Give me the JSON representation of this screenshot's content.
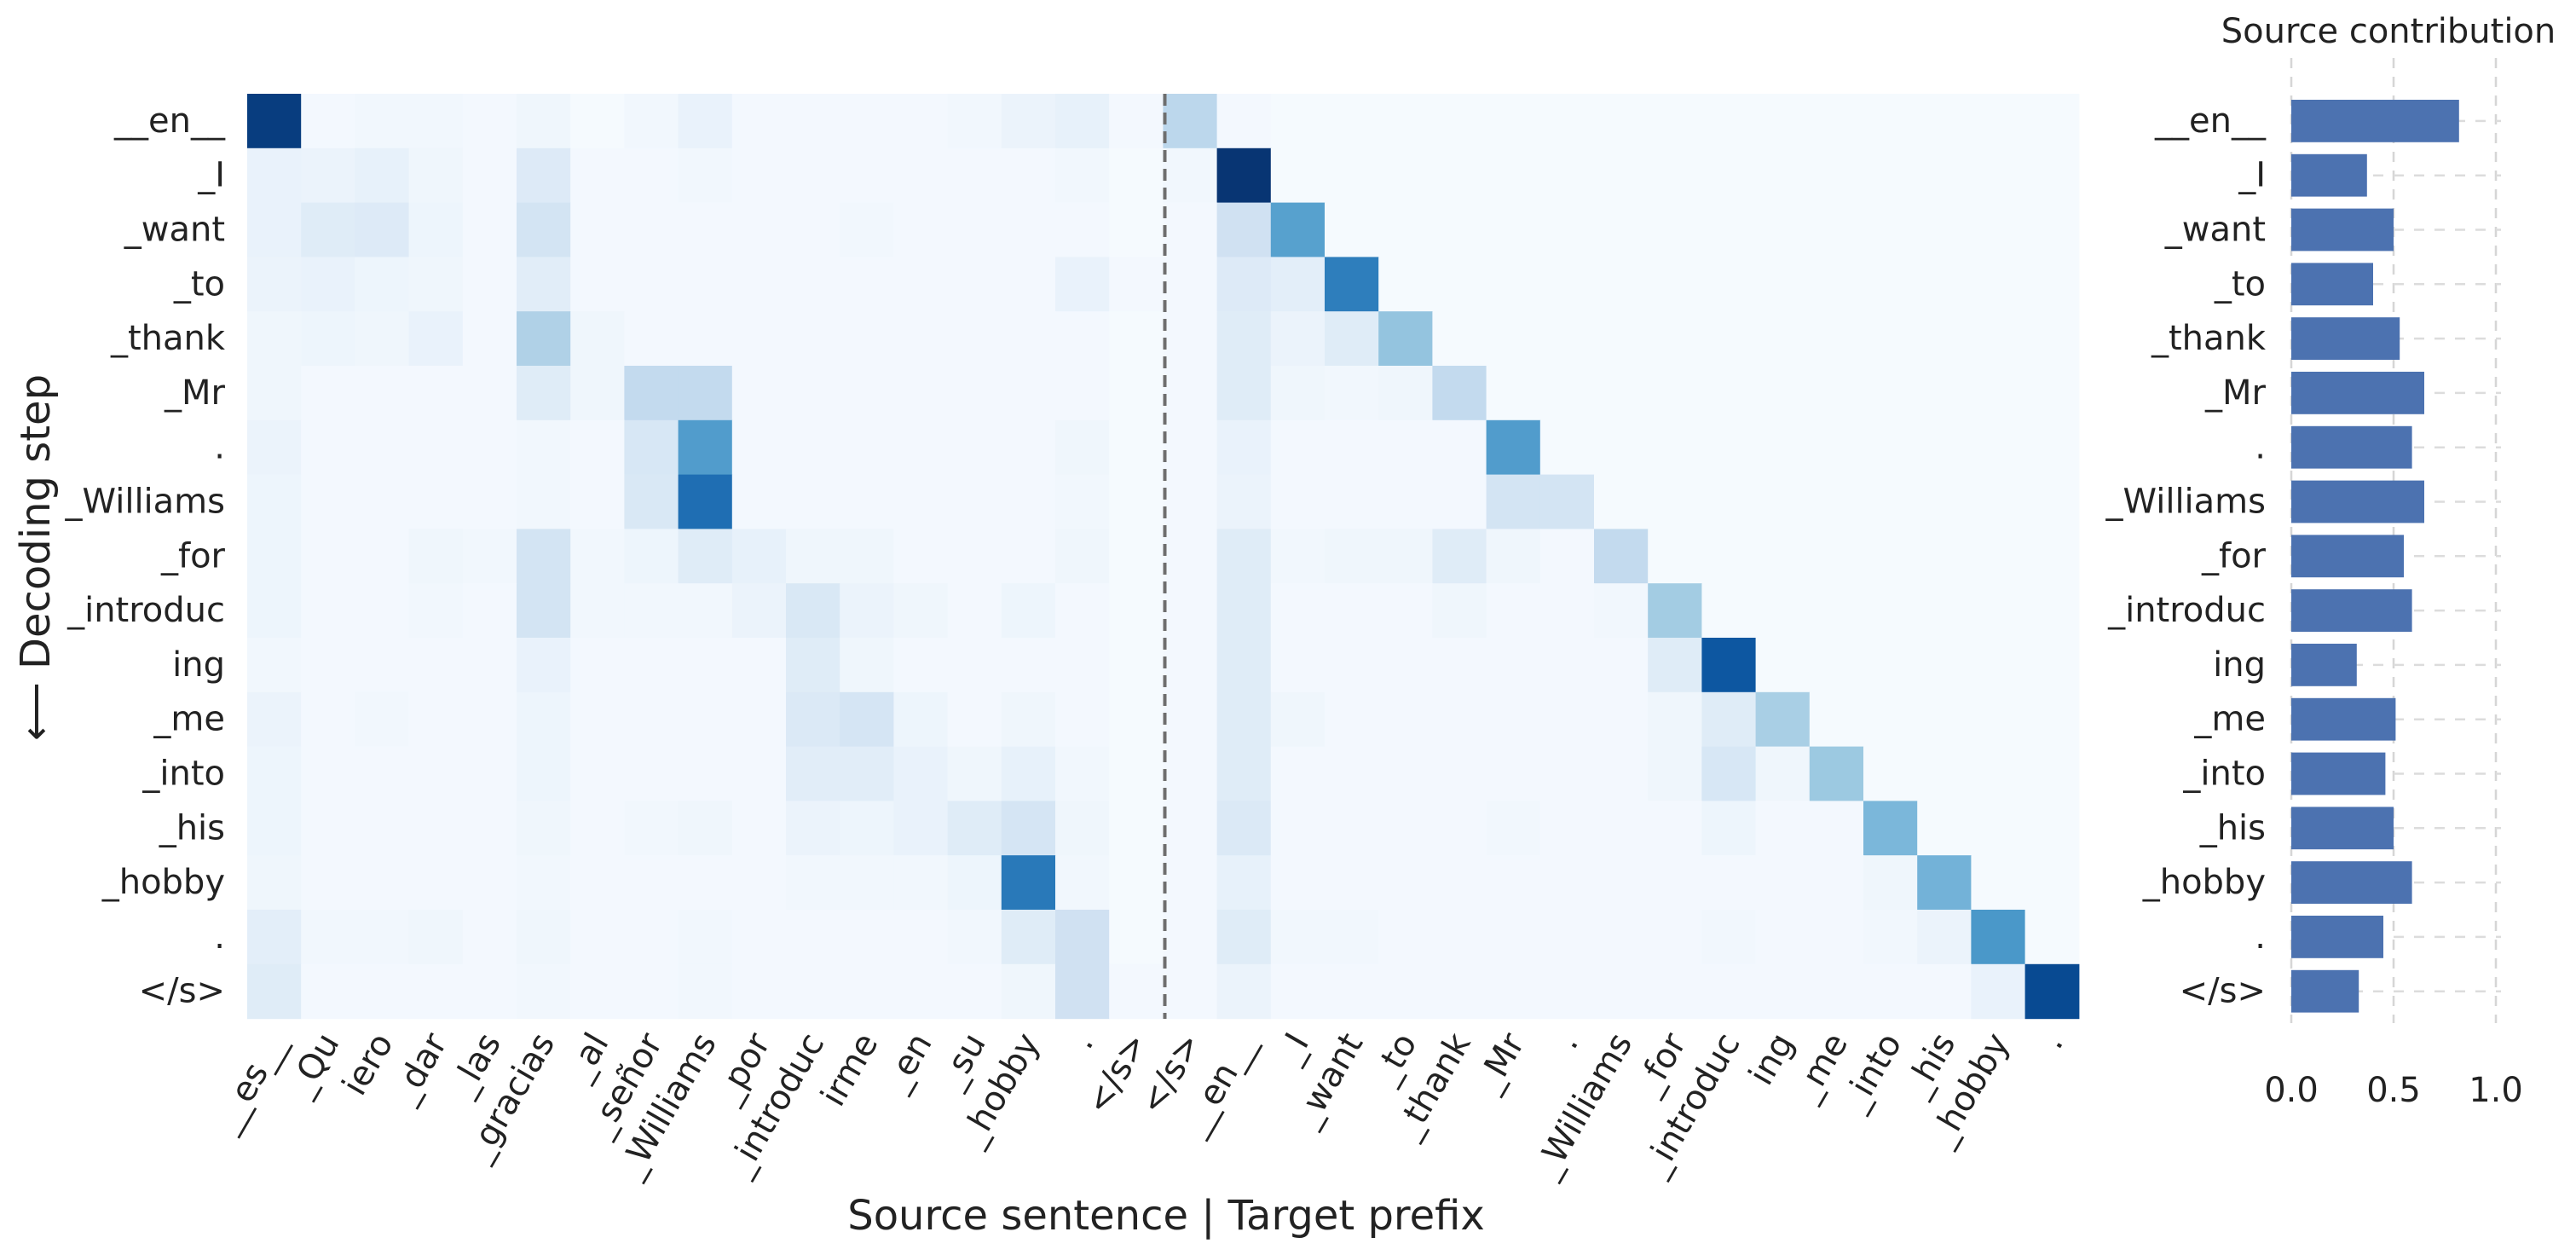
{
  "chart_data": [
    {
      "type": "heatmap",
      "colormap": "Blues",
      "xlabel": "Source sentence | Target prefix",
      "ylabel": "⟵ Decoding step",
      "rows": [
        "__en__",
        "_I",
        "_want",
        "_to",
        "_thank",
        "_Mr",
        ".",
        "_Williams",
        "_for",
        "_introduc",
        "ing",
        "_me",
        "_into",
        "_his",
        "_hobby",
        ".",
        "</s>"
      ],
      "source_tokens": [
        "__es__",
        "_Qu",
        "iero",
        "_dar",
        "_las",
        "_gracias",
        "_al",
        "_señor",
        "_Williams",
        "_por",
        "_introduc",
        "irme",
        "_en",
        "_su",
        "_hobby",
        ".",
        "</s>"
      ],
      "target_tokens": [
        "</s>",
        "__en__",
        "_I",
        "_want",
        "_to",
        "_thank",
        "_Mr",
        ".",
        "_Williams",
        "_for",
        "_introduc",
        "ing",
        "_me",
        "_into",
        "_his",
        "_hobby",
        "."
      ],
      "source_values": [
        [
          0.95,
          0.02,
          0.03,
          0.03,
          0.02,
          0.04,
          0.01,
          0.03,
          0.07,
          0.02,
          0.02,
          0.02,
          0.02,
          0.03,
          0.06,
          0.08,
          0.02
        ],
        [
          0.07,
          0.06,
          0.08,
          0.04,
          0.02,
          0.13,
          0.02,
          0.02,
          0.03,
          0.02,
          0.02,
          0.02,
          0.02,
          0.02,
          0.02,
          0.03,
          0.01
        ],
        [
          0.07,
          0.12,
          0.13,
          0.05,
          0.02,
          0.18,
          0.02,
          0.02,
          0.02,
          0.02,
          0.02,
          0.03,
          0.02,
          0.02,
          0.02,
          0.02,
          0.01
        ],
        [
          0.06,
          0.07,
          0.05,
          0.04,
          0.02,
          0.11,
          0.02,
          0.02,
          0.02,
          0.02,
          0.02,
          0.02,
          0.02,
          0.02,
          0.02,
          0.07,
          0.02
        ],
        [
          0.04,
          0.05,
          0.04,
          0.07,
          0.02,
          0.32,
          0.04,
          0.02,
          0.02,
          0.02,
          0.02,
          0.02,
          0.02,
          0.02,
          0.02,
          0.02,
          0.01
        ],
        [
          0.04,
          0.02,
          0.02,
          0.02,
          0.02,
          0.12,
          0.04,
          0.26,
          0.26,
          0.02,
          0.02,
          0.02,
          0.02,
          0.02,
          0.02,
          0.02,
          0.01
        ],
        [
          0.06,
          0.02,
          0.02,
          0.02,
          0.02,
          0.03,
          0.02,
          0.16,
          0.58,
          0.02,
          0.02,
          0.02,
          0.02,
          0.02,
          0.02,
          0.04,
          0.01
        ],
        [
          0.05,
          0.02,
          0.02,
          0.02,
          0.02,
          0.03,
          0.02,
          0.15,
          0.76,
          0.02,
          0.02,
          0.02,
          0.02,
          0.02,
          0.02,
          0.03,
          0.01
        ],
        [
          0.05,
          0.02,
          0.02,
          0.04,
          0.03,
          0.18,
          0.03,
          0.05,
          0.12,
          0.08,
          0.04,
          0.04,
          0.02,
          0.02,
          0.02,
          0.04,
          0.01
        ],
        [
          0.05,
          0.02,
          0.02,
          0.03,
          0.02,
          0.18,
          0.03,
          0.03,
          0.03,
          0.06,
          0.15,
          0.06,
          0.04,
          0.02,
          0.05,
          0.02,
          0.01
        ],
        [
          0.03,
          0.02,
          0.02,
          0.02,
          0.02,
          0.07,
          0.02,
          0.02,
          0.02,
          0.02,
          0.12,
          0.04,
          0.02,
          0.02,
          0.02,
          0.02,
          0.01
        ],
        [
          0.06,
          0.02,
          0.03,
          0.02,
          0.02,
          0.05,
          0.02,
          0.02,
          0.02,
          0.02,
          0.14,
          0.17,
          0.05,
          0.02,
          0.04,
          0.02,
          0.01
        ],
        [
          0.05,
          0.02,
          0.02,
          0.02,
          0.02,
          0.05,
          0.02,
          0.02,
          0.02,
          0.02,
          0.11,
          0.11,
          0.07,
          0.04,
          0.08,
          0.03,
          0.01
        ],
        [
          0.05,
          0.02,
          0.02,
          0.02,
          0.02,
          0.04,
          0.02,
          0.03,
          0.04,
          0.02,
          0.06,
          0.05,
          0.07,
          0.12,
          0.17,
          0.04,
          0.01
        ],
        [
          0.04,
          0.02,
          0.02,
          0.02,
          0.02,
          0.03,
          0.02,
          0.02,
          0.02,
          0.02,
          0.03,
          0.03,
          0.03,
          0.05,
          0.72,
          0.03,
          0.01
        ],
        [
          0.1,
          0.03,
          0.03,
          0.04,
          0.02,
          0.04,
          0.02,
          0.02,
          0.03,
          0.02,
          0.02,
          0.02,
          0.02,
          0.03,
          0.12,
          0.2,
          0.01
        ],
        [
          0.12,
          0.02,
          0.02,
          0.02,
          0.02,
          0.03,
          0.02,
          0.02,
          0.03,
          0.02,
          0.02,
          0.02,
          0.02,
          0.02,
          0.04,
          0.2,
          0.02
        ]
      ],
      "target_values": [
        [
          0.28,
          0.02,
          0.01,
          0.01,
          0.01,
          0.01,
          0.01,
          0.01,
          0.01,
          0.01,
          0.01,
          0.01,
          0.01,
          0.01,
          0.01,
          0.01,
          0.01
        ],
        [
          0.03,
          0.98,
          0.01,
          0.01,
          0.01,
          0.01,
          0.01,
          0.01,
          0.01,
          0.01,
          0.01,
          0.01,
          0.01,
          0.01,
          0.01,
          0.01,
          0.01
        ],
        [
          0.02,
          0.2,
          0.56,
          0.01,
          0.01,
          0.01,
          0.01,
          0.01,
          0.01,
          0.01,
          0.01,
          0.01,
          0.01,
          0.01,
          0.01,
          0.01,
          0.01
        ],
        [
          0.02,
          0.13,
          0.1,
          0.7,
          0.01,
          0.01,
          0.01,
          0.01,
          0.01,
          0.01,
          0.01,
          0.01,
          0.01,
          0.01,
          0.01,
          0.01,
          0.01
        ],
        [
          0.02,
          0.12,
          0.06,
          0.12,
          0.4,
          0.01,
          0.01,
          0.01,
          0.01,
          0.01,
          0.01,
          0.01,
          0.01,
          0.01,
          0.01,
          0.01,
          0.01
        ],
        [
          0.02,
          0.12,
          0.04,
          0.03,
          0.04,
          0.26,
          0.01,
          0.01,
          0.01,
          0.01,
          0.01,
          0.01,
          0.01,
          0.01,
          0.01,
          0.01,
          0.01
        ],
        [
          0.02,
          0.07,
          0.02,
          0.02,
          0.02,
          0.02,
          0.58,
          0.01,
          0.01,
          0.01,
          0.01,
          0.01,
          0.01,
          0.01,
          0.01,
          0.01,
          0.01
        ],
        [
          0.02,
          0.06,
          0.02,
          0.02,
          0.02,
          0.02,
          0.18,
          0.18,
          0.01,
          0.01,
          0.01,
          0.01,
          0.01,
          0.01,
          0.01,
          0.01,
          0.01
        ],
        [
          0.02,
          0.12,
          0.03,
          0.04,
          0.04,
          0.12,
          0.04,
          0.02,
          0.26,
          0.01,
          0.01,
          0.01,
          0.01,
          0.01,
          0.01,
          0.01,
          0.01
        ],
        [
          0.02,
          0.12,
          0.02,
          0.02,
          0.02,
          0.04,
          0.02,
          0.02,
          0.03,
          0.36,
          0.01,
          0.01,
          0.01,
          0.01,
          0.01,
          0.01,
          0.01
        ],
        [
          0.02,
          0.12,
          0.02,
          0.02,
          0.02,
          0.02,
          0.02,
          0.02,
          0.02,
          0.12,
          0.85,
          0.01,
          0.01,
          0.01,
          0.01,
          0.01,
          0.01
        ],
        [
          0.02,
          0.12,
          0.04,
          0.02,
          0.02,
          0.02,
          0.02,
          0.02,
          0.02,
          0.04,
          0.12,
          0.34,
          0.01,
          0.01,
          0.01,
          0.01,
          0.01
        ],
        [
          0.02,
          0.12,
          0.02,
          0.02,
          0.02,
          0.02,
          0.02,
          0.02,
          0.02,
          0.04,
          0.16,
          0.04,
          0.38,
          0.01,
          0.01,
          0.01,
          0.01
        ],
        [
          0.02,
          0.14,
          0.02,
          0.02,
          0.02,
          0.02,
          0.03,
          0.02,
          0.02,
          0.02,
          0.05,
          0.02,
          0.02,
          0.46,
          0.01,
          0.01,
          0.01
        ],
        [
          0.02,
          0.08,
          0.02,
          0.02,
          0.02,
          0.02,
          0.02,
          0.02,
          0.02,
          0.02,
          0.02,
          0.02,
          0.02,
          0.04,
          0.48,
          0.01,
          0.01
        ],
        [
          0.02,
          0.12,
          0.03,
          0.03,
          0.02,
          0.02,
          0.02,
          0.02,
          0.02,
          0.02,
          0.03,
          0.02,
          0.02,
          0.03,
          0.06,
          0.6,
          0.01
        ],
        [
          0.02,
          0.06,
          0.02,
          0.02,
          0.02,
          0.02,
          0.02,
          0.02,
          0.02,
          0.02,
          0.02,
          0.02,
          0.02,
          0.02,
          0.02,
          0.07,
          0.9
        ]
      ]
    },
    {
      "type": "bar",
      "orientation": "horizontal",
      "title": "Source contribution",
      "categories": [
        "__en__",
        "_I",
        "_want",
        "_to",
        "_thank",
        "_Mr",
        ".",
        "_Williams",
        "_for",
        "_introduc",
        "ing",
        "_me",
        "_into",
        "_his",
        "_hobby",
        ".",
        "</s>"
      ],
      "values": [
        0.82,
        0.37,
        0.5,
        0.4,
        0.53,
        0.65,
        0.59,
        0.65,
        0.55,
        0.59,
        0.32,
        0.51,
        0.46,
        0.5,
        0.59,
        0.45,
        0.33
      ],
      "xlim": [
        0,
        1
      ],
      "xticks": [
        0.0,
        0.5,
        1.0
      ],
      "xtick_labels": [
        "0.0",
        "0.5",
        "1.0"
      ],
      "bar_color": "#4c72b0",
      "grid": "vertical dashed"
    }
  ]
}
